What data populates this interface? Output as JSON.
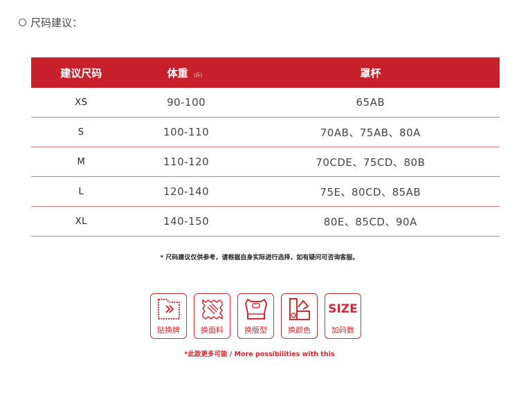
{
  "title": "尺码建议：",
  "table": {
    "headers": [
      "建议尺码",
      "体重",
      "罩杯"
    ],
    "weight_unit": "（斤）",
    "rows": [
      [
        "XS",
        "90-100",
        "65AB"
      ],
      [
        "S",
        "100-110",
        "70AB、75AB、80A"
      ],
      [
        "M",
        "110-120",
        "70CDE、75CD、80B"
      ],
      [
        "L",
        "120-140",
        "75E、80CD、85AB"
      ],
      [
        "XL",
        "140-150",
        "80E、85CD、90A"
      ]
    ]
  },
  "note": "* 尺码建议仅供参考，请根据自身实际进行选择，如有疑问可咨询客服。",
  "options": [
    {
      "icon": "label-swap-icon",
      "label": "贴换牌"
    },
    {
      "icon": "fabric-icon",
      "label": "换面料"
    },
    {
      "icon": "garment-icon",
      "label": "换版型"
    },
    {
      "icon": "color-swatch-icon",
      "label": "换颜色"
    },
    {
      "icon": "size-icon",
      "text": "SIZE",
      "label": "加码数"
    }
  ],
  "more": "*此款更多可能 / More possibilities with this",
  "colors": {
    "accent": "#c8202b"
  }
}
